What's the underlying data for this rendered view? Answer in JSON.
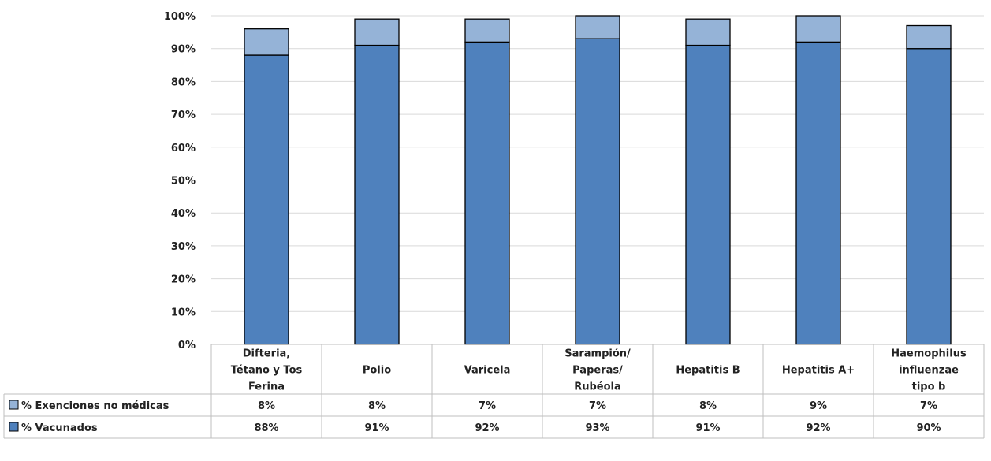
{
  "chart_data": {
    "type": "bar",
    "stacked": true,
    "categories": [
      [
        "Difteria,",
        "Tétano y Tos",
        "Ferina"
      ],
      [
        "Polio"
      ],
      [
        "Varicela"
      ],
      [
        "Sarampión/",
        "Paperas/",
        "Rubéola"
      ],
      [
        "Hepatitis B"
      ],
      [
        "Hepatitis A+"
      ],
      [
        "Haemophilus",
        "influenzae",
        "tipo b"
      ]
    ],
    "series": [
      {
        "name": "% Vacunados",
        "color": "#4f81bd",
        "values": [
          88,
          91,
          92,
          93,
          91,
          92,
          90
        ],
        "labels": [
          "88%",
          "91%",
          "92%",
          "93%",
          "91%",
          "92%",
          "90%"
        ]
      },
      {
        "name": "% Exenciones no médicas",
        "color": "#95b3d7",
        "values": [
          8,
          8,
          7,
          7,
          8,
          9,
          7
        ],
        "labels": [
          "8%",
          "8%",
          "7%",
          "7%",
          "8%",
          "9%",
          "7%"
        ]
      }
    ],
    "ylim": [
      0,
      100
    ],
    "yticks": [
      "0%",
      "10%",
      "20%",
      "30%",
      "40%",
      "50%",
      "60%",
      "70%",
      "80%",
      "90%",
      "100%"
    ],
    "grid": true,
    "legend": "data-table"
  }
}
